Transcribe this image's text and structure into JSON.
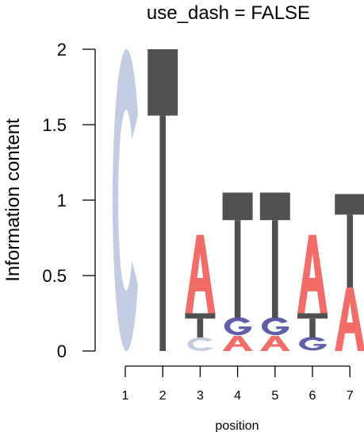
{
  "chart_data": {
    "type": "sequence-logo",
    "title": "use_dash = FALSE",
    "xlabel": "position",
    "ylabel": "Information content",
    "ylim": [
      0,
      2
    ],
    "y_ticks": [
      "0",
      "0.5",
      "1",
      "1.5",
      "2"
    ],
    "y_tick_values": [
      0,
      0.5,
      1,
      1.5,
      2
    ],
    "x_ticks": [
      "1",
      "2",
      "3",
      "4",
      "5",
      "6",
      "7"
    ],
    "colors": {
      "A": "#f26c68",
      "C": "#c1cce3",
      "G": "#5e5fa8",
      "T": "#505050"
    },
    "positions": [
      {
        "position": 1,
        "letters": [
          {
            "letter": "C",
            "height": 2.0
          }
        ]
      },
      {
        "position": 2,
        "letters": [
          {
            "letter": "T",
            "height": 2.0
          }
        ]
      },
      {
        "position": 3,
        "letters": [
          {
            "letter": "C",
            "height": 0.09
          },
          {
            "letter": "T",
            "height": 0.16
          },
          {
            "letter": "A",
            "height": 0.52
          }
        ]
      },
      {
        "position": 4,
        "letters": [
          {
            "letter": "A",
            "height": 0.1
          },
          {
            "letter": "G",
            "height": 0.12
          },
          {
            "letter": "T",
            "height": 0.83
          }
        ]
      },
      {
        "position": 5,
        "letters": [
          {
            "letter": "A",
            "height": 0.1
          },
          {
            "letter": "G",
            "height": 0.12
          },
          {
            "letter": "T",
            "height": 0.83
          }
        ]
      },
      {
        "position": 6,
        "letters": [
          {
            "letter": "G",
            "height": 0.09
          },
          {
            "letter": "T",
            "height": 0.16
          },
          {
            "letter": "A",
            "height": 0.52
          }
        ]
      },
      {
        "position": 7,
        "letters": [
          {
            "letter": "A",
            "height": 0.42
          },
          {
            "letter": "T",
            "height": 0.62
          }
        ]
      }
    ]
  }
}
